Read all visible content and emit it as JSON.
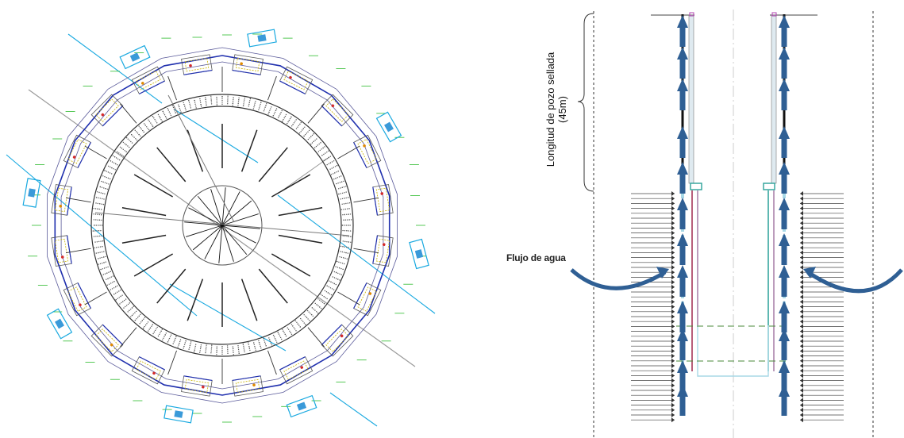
{
  "diagram": {
    "left_panel": {
      "name": "circular-wellfield-plan"
    },
    "right_panel": {
      "name": "well-cross-section",
      "sealed_length_label_line1": "Longitud de pozo sellada",
      "sealed_length_label_line2": "(45m)",
      "water_flow_label": "Flujo de agua"
    },
    "colors": {
      "wall": "#333333",
      "wall_hatch": "#555555",
      "frame_blue": "#1f2fae",
      "water_line": "#19a9e0",
      "annotation_green": "#2dbb2d",
      "arrow_blue": "#2f5f94",
      "pipe_cyan": "#a8d8e6",
      "dashed_green": "#4a8a3a",
      "casing_red": "#a0284f",
      "casing_teal": "#2aa198"
    }
  }
}
